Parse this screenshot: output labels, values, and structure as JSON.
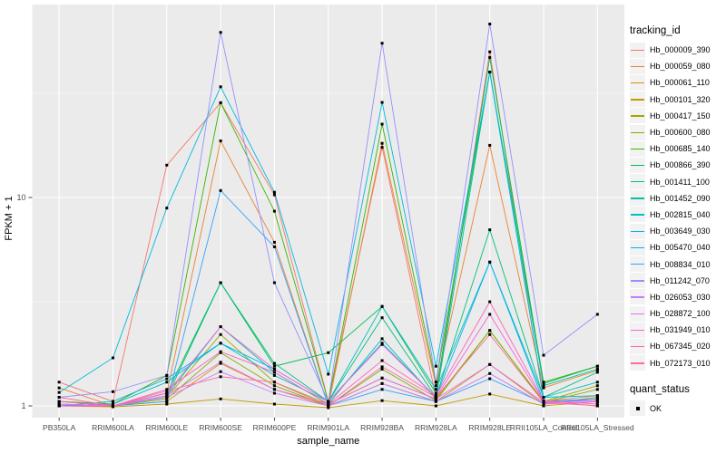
{
  "chart_data": {
    "type": "line",
    "title": "",
    "xlabel": "sample_name",
    "ylabel": "FPKM + 1",
    "y_scale": "log10",
    "y_ticks": [
      1,
      10
    ],
    "y_tick_labels": [
      "1",
      "10"
    ],
    "y_minor_ticks": [
      3.1623,
      31.623
    ],
    "ylim": [
      0.88,
      84
    ],
    "grid": true,
    "panel_bg": "#EBEBEB",
    "grid_color": "#FFFFFF",
    "tick_text_color": "#4D4D4D",
    "axis_title_color": "#000000",
    "point_marker": "filled-square",
    "point_color": "#000000",
    "legend_position": "right",
    "categories": [
      "PB350LA",
      "RRIM600LA",
      "RRIM600LE",
      "RRIM600SE",
      "RRIM600PE",
      "RRIM901LA",
      "RRIM928BA",
      "RRIM928LA",
      "RRIM928LE",
      "RRII105LA_Control",
      "RRII105LA_Stressed"
    ],
    "series": [
      {
        "name": "Hb_000009_390",
        "color": "#F8766D",
        "values": [
          1.3,
          1.05,
          14.3,
          28.5,
          10.3,
          1.05,
          17.4,
          1.1,
          50.0,
          1.05,
          1.12
        ]
      },
      {
        "name": "Hb_000059_080",
        "color": "#EA8331",
        "values": [
          1.22,
          1.0,
          1.15,
          18.7,
          6.1,
          1.0,
          18.2,
          1.25,
          17.8,
          1.22,
          1.48
        ]
      },
      {
        "name": "Hb_000061_110",
        "color": "#D89000",
        "values": [
          1.0,
          1.0,
          1.05,
          1.6,
          1.2,
          1.0,
          1.28,
          1.05,
          1.58,
          1.02,
          1.1
        ]
      },
      {
        "name": "Hb_000101_320",
        "color": "#C09B00",
        "values": [
          1.0,
          0.99,
          1.02,
          1.08,
          1.02,
          0.98,
          1.06,
          1.0,
          1.14,
          1.0,
          1.05
        ]
      },
      {
        "name": "Hb_000417_150",
        "color": "#A3A500",
        "values": [
          1.05,
          1.0,
          1.1,
          2.2,
          1.3,
          1.02,
          1.36,
          1.08,
          2.3,
          1.05,
          1.25
        ]
      },
      {
        "name": "Hb_000600_080",
        "color": "#7CAE00",
        "values": [
          1.02,
          1.0,
          1.08,
          1.8,
          1.25,
          1.0,
          1.5,
          1.06,
          2.3,
          1.04,
          1.2
        ]
      },
      {
        "name": "Hb_000685_140",
        "color": "#39B600",
        "values": [
          1.05,
          1.02,
          1.4,
          28.5,
          8.6,
          1.05,
          22.5,
          1.3,
          40.0,
          1.3,
          1.55
        ]
      },
      {
        "name": "Hb_000866_390",
        "color": "#00BB4E",
        "values": [
          1.0,
          1.0,
          1.15,
          3.9,
          1.55,
          1.8,
          3.0,
          1.15,
          47.0,
          1.28,
          1.55
        ]
      },
      {
        "name": "Hb_001411_100",
        "color": "#00BF7D",
        "values": [
          1.0,
          1.0,
          1.1,
          3.9,
          1.6,
          1.05,
          2.65,
          1.1,
          7.0,
          1.1,
          1.45
        ]
      },
      {
        "name": "Hb_001452_090",
        "color": "#00C1A3",
        "values": [
          1.0,
          1.0,
          1.12,
          2.4,
          1.45,
          1.02,
          2.1,
          1.08,
          40.0,
          1.25,
          1.5
        ]
      },
      {
        "name": "Hb_002815_040",
        "color": "#00BFC4",
        "values": [
          1.0,
          1.02,
          1.3,
          2.0,
          1.4,
          1.05,
          3.0,
          1.2,
          4.9,
          1.1,
          1.3
        ]
      },
      {
        "name": "Hb_003649_030",
        "color": "#00BAE0",
        "values": [
          1.16,
          1.7,
          8.9,
          34.0,
          10.6,
          1.42,
          28.6,
          1.55,
          40.0,
          1.1,
          1.12
        ]
      },
      {
        "name": "Hb_005470_040",
        "color": "#00B0F6",
        "values": [
          1.0,
          1.05,
          1.35,
          2.0,
          1.5,
          1.05,
          2.0,
          1.1,
          4.9,
          1.05,
          1.08
        ]
      },
      {
        "name": "Hb_008834_010",
        "color": "#35A2FF",
        "values": [
          1.0,
          1.0,
          1.05,
          10.8,
          5.8,
          1.0,
          1.2,
          1.05,
          1.35,
          1.03,
          1.08
        ]
      },
      {
        "name": "Hb_011242_070",
        "color": "#9590FF",
        "values": [
          1.1,
          1.17,
          1.4,
          62.0,
          3.9,
          1.05,
          55.0,
          1.3,
          68.0,
          1.75,
          2.75
        ]
      },
      {
        "name": "Hb_026053_030",
        "color": "#C77CFF",
        "values": [
          1.0,
          1.0,
          1.1,
          1.46,
          1.15,
          1.0,
          1.28,
          1.05,
          1.43,
          1.02,
          1.05
        ]
      },
      {
        "name": "Hb_028872_100",
        "color": "#E76BF3",
        "values": [
          1.02,
          1.0,
          1.12,
          1.62,
          1.2,
          1.02,
          1.36,
          1.08,
          1.58,
          1.04,
          1.06
        ]
      },
      {
        "name": "Hb_031949_010",
        "color": "#FA62DB",
        "values": [
          1.0,
          1.0,
          1.15,
          2.4,
          1.5,
          1.05,
          1.97,
          1.1,
          2.75,
          1.05,
          1.0
        ]
      },
      {
        "name": "Hb_067345_020",
        "color": "#FF62BC",
        "values": [
          1.05,
          1.0,
          1.2,
          1.82,
          1.45,
          1.02,
          1.65,
          1.12,
          3.16,
          1.06,
          1.02
        ]
      },
      {
        "name": "Hb_072173_010",
        "color": "#FF6A98",
        "values": [
          1.1,
          1.0,
          1.18,
          1.38,
          1.3,
          1.0,
          1.54,
          1.1,
          2.2,
          1.04,
          1.0
        ]
      }
    ],
    "legend": {
      "color_title": "tracking_id",
      "shape_title": "quant_status",
      "shape_items": [
        {
          "label": "OK",
          "marker": "black-square"
        }
      ]
    }
  }
}
